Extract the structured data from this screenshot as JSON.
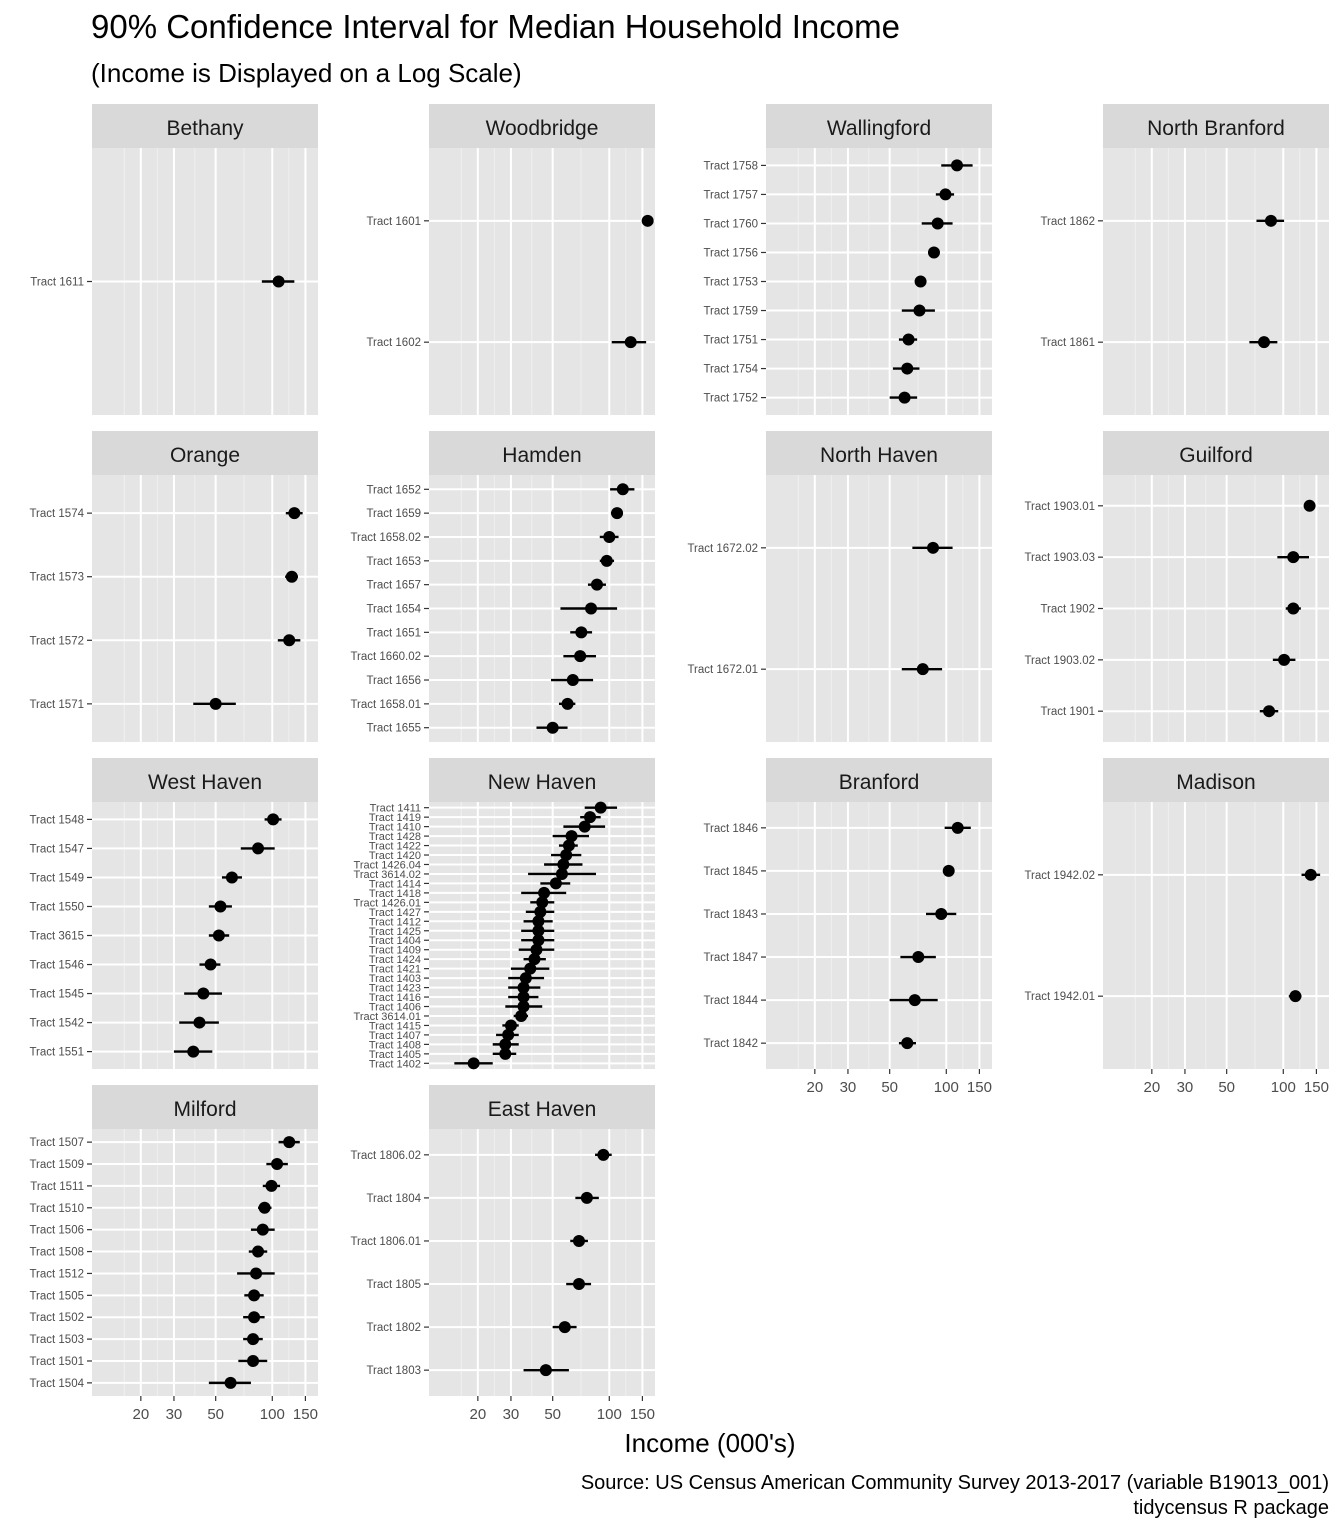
{
  "chart_data": {
    "type": "dot-and-whisker (faceted)",
    "title": "90% Confidence Interval for Median Household Income",
    "subtitle": "(Income is Displayed on a Log Scale)",
    "xlabel": "Income (000's)",
    "ylabel": "",
    "caption": [
      "Source: US Census American Community Survey 2013-2017 (variable B19013_001)",
      "tidycensus R package"
    ],
    "x_scale": "log10",
    "xlim": [
      11,
      175
    ],
    "x_ticks": [
      20,
      30,
      50,
      100,
      150
    ],
    "x_tick_labels": [
      "20",
      "30",
      "50",
      "100",
      "150"
    ],
    "grid": true,
    "facet_layout": {
      "columns": 4,
      "rows": 4
    },
    "facets": [
      {
        "name": "Bethany",
        "tracts": [
          {
            "label": "Tract 1611",
            "estimate": 108,
            "low": 88,
            "high": 131
          }
        ]
      },
      {
        "name": "Woodbridge",
        "tracts": [
          {
            "label": "Tract 1601",
            "estimate": 160,
            "low": 152,
            "high": 168
          },
          {
            "label": "Tract 1602",
            "estimate": 130,
            "low": 103,
            "high": 157
          }
        ]
      },
      {
        "name": "Wallingford",
        "tracts": [
          {
            "label": "Tract 1758",
            "estimate": 114,
            "low": 94,
            "high": 138
          },
          {
            "label": "Tract 1757",
            "estimate": 99,
            "low": 88,
            "high": 110
          },
          {
            "label": "Tract 1760",
            "estimate": 90,
            "low": 74,
            "high": 108
          },
          {
            "label": "Tract 1756",
            "estimate": 86,
            "low": 81,
            "high": 91
          },
          {
            "label": "Tract 1753",
            "estimate": 73,
            "low": 69,
            "high": 77
          },
          {
            "label": "Tract 1759",
            "estimate": 72,
            "low": 58,
            "high": 87
          },
          {
            "label": "Tract 1751",
            "estimate": 63,
            "low": 56,
            "high": 70
          },
          {
            "label": "Tract 1754",
            "estimate": 62,
            "low": 52,
            "high": 72
          },
          {
            "label": "Tract 1752",
            "estimate": 60,
            "low": 50,
            "high": 70
          }
        ]
      },
      {
        "name": "North Branford",
        "tracts": [
          {
            "label": "Tract 1862",
            "estimate": 86,
            "low": 72,
            "high": 101
          },
          {
            "label": "Tract 1861",
            "estimate": 79,
            "low": 66,
            "high": 93
          }
        ]
      },
      {
        "name": "Orange",
        "tracts": [
          {
            "label": "Tract 1574",
            "estimate": 131,
            "low": 118,
            "high": 145
          },
          {
            "label": "Tract 1573",
            "estimate": 127,
            "low": 117,
            "high": 137
          },
          {
            "label": "Tract 1572",
            "estimate": 123,
            "low": 107,
            "high": 141
          },
          {
            "label": "Tract 1571",
            "estimate": 50,
            "low": 38,
            "high": 64
          }
        ]
      },
      {
        "name": "Hamden",
        "tracts": [
          {
            "label": "Tract 1652",
            "estimate": 118,
            "low": 101,
            "high": 136
          },
          {
            "label": "Tract 1659",
            "estimate": 110,
            "low": 102,
            "high": 118
          },
          {
            "label": "Tract 1658.02",
            "estimate": 100,
            "low": 89,
            "high": 112
          },
          {
            "label": "Tract 1653",
            "estimate": 97,
            "low": 89,
            "high": 106
          },
          {
            "label": "Tract 1657",
            "estimate": 86,
            "low": 77,
            "high": 96
          },
          {
            "label": "Tract 1654",
            "estimate": 80,
            "low": 55,
            "high": 110
          },
          {
            "label": "Tract 1651",
            "estimate": 71,
            "low": 62,
            "high": 81
          },
          {
            "label": "Tract 1660.02",
            "estimate": 70,
            "low": 57,
            "high": 85
          },
          {
            "label": "Tract 1656",
            "estimate": 64,
            "low": 49,
            "high": 82
          },
          {
            "label": "Tract 1658.01",
            "estimate": 60,
            "low": 54,
            "high": 66
          },
          {
            "label": "Tract 1655",
            "estimate": 50,
            "low": 41,
            "high": 60
          }
        ]
      },
      {
        "name": "North Haven",
        "tracts": [
          {
            "label": "Tract 1672.02",
            "estimate": 85,
            "low": 66,
            "high": 108
          },
          {
            "label": "Tract 1672.01",
            "estimate": 75,
            "low": 58,
            "high": 95
          }
        ]
      },
      {
        "name": "Guilford",
        "tracts": [
          {
            "label": "Tract 1903.01",
            "estimate": 138,
            "low": 129,
            "high": 147
          },
          {
            "label": "Tract 1903.03",
            "estimate": 113,
            "low": 93,
            "high": 137
          },
          {
            "label": "Tract 1902",
            "estimate": 113,
            "low": 103,
            "high": 124
          },
          {
            "label": "Tract 1903.02",
            "estimate": 101,
            "low": 88,
            "high": 116
          },
          {
            "label": "Tract 1901",
            "estimate": 84,
            "low": 75,
            "high": 94
          }
        ]
      },
      {
        "name": "West Haven",
        "tracts": [
          {
            "label": "Tract 1548",
            "estimate": 101,
            "low": 91,
            "high": 112
          },
          {
            "label": "Tract 1547",
            "estimate": 84,
            "low": 68,
            "high": 103
          },
          {
            "label": "Tract 1549",
            "estimate": 61,
            "low": 54,
            "high": 69
          },
          {
            "label": "Tract 1550",
            "estimate": 53,
            "low": 46,
            "high": 61
          },
          {
            "label": "Tract 3615",
            "estimate": 52,
            "low": 46,
            "high": 59
          },
          {
            "label": "Tract 1546",
            "estimate": 47,
            "low": 41,
            "high": 53
          },
          {
            "label": "Tract 1545",
            "estimate": 43,
            "low": 34,
            "high": 54
          },
          {
            "label": "Tract 1542",
            "estimate": 41,
            "low": 32,
            "high": 52
          },
          {
            "label": "Tract 1551",
            "estimate": 38,
            "low": 30,
            "high": 48
          }
        ]
      },
      {
        "name": "New Haven",
        "tracts": [
          {
            "label": "Tract 1411",
            "estimate": 90,
            "low": 74,
            "high": 110
          },
          {
            "label": "Tract 1419",
            "estimate": 79,
            "low": 70,
            "high": 90
          },
          {
            "label": "Tract 1410",
            "estimate": 74,
            "low": 57,
            "high": 95
          },
          {
            "label": "Tract 1428",
            "estimate": 63,
            "low": 50,
            "high": 78
          },
          {
            "label": "Tract 1422",
            "estimate": 61,
            "low": 54,
            "high": 68
          },
          {
            "label": "Tract 1420",
            "estimate": 59,
            "low": 49,
            "high": 71
          },
          {
            "label": "Tract 1426.04",
            "estimate": 57,
            "low": 45,
            "high": 72
          },
          {
            "label": "Tract 3614.02",
            "estimate": 56,
            "low": 37,
            "high": 85
          },
          {
            "label": "Tract 1414",
            "estimate": 52,
            "low": 43,
            "high": 62
          },
          {
            "label": "Tract 1418",
            "estimate": 45,
            "low": 34,
            "high": 59
          },
          {
            "label": "Tract 1426.01",
            "estimate": 44,
            "low": 38,
            "high": 51
          },
          {
            "label": "Tract 1427",
            "estimate": 43,
            "low": 36,
            "high": 51
          },
          {
            "label": "Tract 1412",
            "estimate": 42,
            "low": 35,
            "high": 50
          },
          {
            "label": "Tract 1425",
            "estimate": 42,
            "low": 34,
            "high": 51
          },
          {
            "label": "Tract 1404",
            "estimate": 42,
            "low": 34,
            "high": 51
          },
          {
            "label": "Tract 1409",
            "estimate": 41,
            "low": 33,
            "high": 51
          },
          {
            "label": "Tract 1424",
            "estimate": 40,
            "low": 35,
            "high": 46
          },
          {
            "label": "Tract 1421",
            "estimate": 38,
            "low": 30,
            "high": 48
          },
          {
            "label": "Tract 1403",
            "estimate": 36,
            "low": 29,
            "high": 45
          },
          {
            "label": "Tract 1423",
            "estimate": 35,
            "low": 29,
            "high": 43
          },
          {
            "label": "Tract 1416",
            "estimate": 35,
            "low": 29,
            "high": 42
          },
          {
            "label": "Tract 1406",
            "estimate": 35,
            "low": 28,
            "high": 44
          },
          {
            "label": "Tract 3614.01",
            "estimate": 34,
            "low": 31,
            "high": 37
          },
          {
            "label": "Tract 1415",
            "estimate": 30,
            "low": 27,
            "high": 33
          },
          {
            "label": "Tract 1407",
            "estimate": 29,
            "low": 25,
            "high": 33
          },
          {
            "label": "Tract 1408",
            "estimate": 28,
            "low": 24,
            "high": 33
          },
          {
            "label": "Tract 1405",
            "estimate": 28,
            "low": 24,
            "high": 32
          },
          {
            "label": "Tract 1402",
            "estimate": 19,
            "low": 15,
            "high": 24
          }
        ]
      },
      {
        "name": "Branford",
        "tracts": [
          {
            "label": "Tract 1846",
            "estimate": 115,
            "low": 98,
            "high": 135
          },
          {
            "label": "Tract 1845",
            "estimate": 103,
            "low": 98,
            "high": 108
          },
          {
            "label": "Tract 1843",
            "estimate": 94,
            "low": 78,
            "high": 113
          },
          {
            "label": "Tract 1847",
            "estimate": 71,
            "low": 57,
            "high": 88
          },
          {
            "label": "Tract 1844",
            "estimate": 68,
            "low": 50,
            "high": 90
          },
          {
            "label": "Tract 1842",
            "estimate": 62,
            "low": 56,
            "high": 69
          }
        ]
      },
      {
        "name": "Madison",
        "tracts": [
          {
            "label": "Tract 1942.02",
            "estimate": 140,
            "low": 125,
            "high": 157
          },
          {
            "label": "Tract 1942.01",
            "estimate": 116,
            "low": 107,
            "high": 125
          }
        ]
      },
      {
        "name": "Milford",
        "tracts": [
          {
            "label": "Tract 1507",
            "estimate": 123,
            "low": 108,
            "high": 140
          },
          {
            "label": "Tract 1509",
            "estimate": 106,
            "low": 93,
            "high": 121
          },
          {
            "label": "Tract 1511",
            "estimate": 99,
            "low": 89,
            "high": 110
          },
          {
            "label": "Tract 1510",
            "estimate": 91,
            "low": 84,
            "high": 99
          },
          {
            "label": "Tract 1506",
            "estimate": 89,
            "low": 77,
            "high": 103
          },
          {
            "label": "Tract 1508",
            "estimate": 84,
            "low": 75,
            "high": 94
          },
          {
            "label": "Tract 1512",
            "estimate": 82,
            "low": 65,
            "high": 103
          },
          {
            "label": "Tract 1505",
            "estimate": 80,
            "low": 71,
            "high": 90
          },
          {
            "label": "Tract 1502",
            "estimate": 80,
            "low": 70,
            "high": 91
          },
          {
            "label": "Tract 1503",
            "estimate": 79,
            "low": 70,
            "high": 89
          },
          {
            "label": "Tract 1501",
            "estimate": 79,
            "low": 66,
            "high": 94
          },
          {
            "label": "Tract 1504",
            "estimate": 60,
            "low": 46,
            "high": 77
          }
        ]
      },
      {
        "name": "East Haven",
        "tracts": [
          {
            "label": "Tract 1806.02",
            "estimate": 93,
            "low": 84,
            "high": 103
          },
          {
            "label": "Tract 1804",
            "estimate": 76,
            "low": 66,
            "high": 88
          },
          {
            "label": "Tract 1806.01",
            "estimate": 69,
            "low": 62,
            "high": 77
          },
          {
            "label": "Tract 1805",
            "estimate": 69,
            "low": 59,
            "high": 80
          },
          {
            "label": "Tract 1802",
            "estimate": 58,
            "low": 50,
            "high": 67
          },
          {
            "label": "Tract 1803",
            "estimate": 46,
            "low": 35,
            "high": 61
          }
        ]
      }
    ]
  },
  "colors": {
    "panel_background": "#e5e5e5",
    "strip_background": "#d9d9d9",
    "grid_major": "#ffffff",
    "grid_minor": "#f0f0f0",
    "point": "#000000",
    "axis_text": "#4d4d4d"
  }
}
